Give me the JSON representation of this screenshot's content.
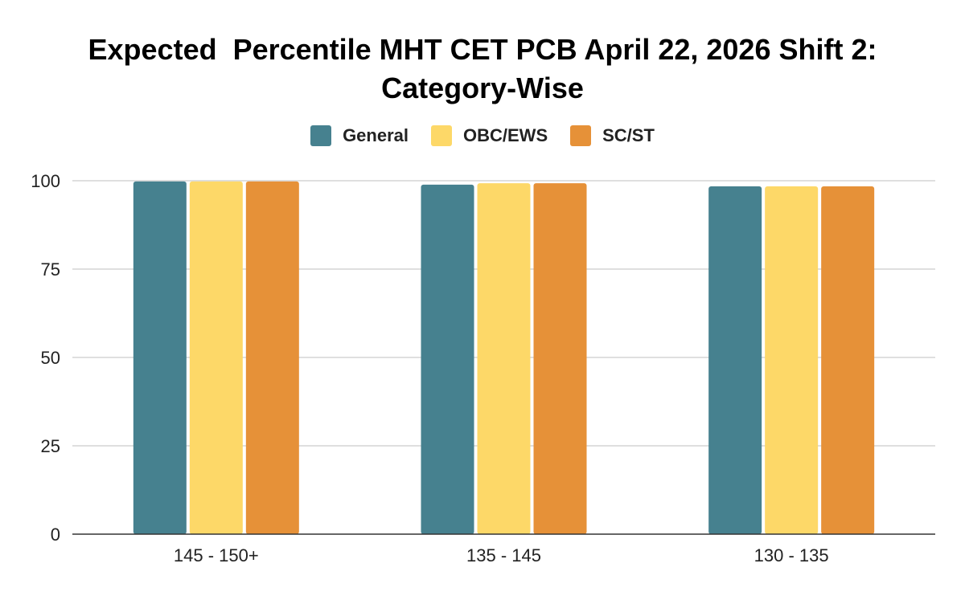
{
  "chart_data": {
    "type": "bar",
    "title_lines": [
      "Expected  Percentile MHT CET PCB April 22, 2026 Shift 2:",
      "Category-Wise"
    ],
    "xlabel": "",
    "ylabel": "",
    "categories": [
      "145 - 150+",
      "135 - 145",
      "130 - 135"
    ],
    "series": [
      {
        "name": "General",
        "color": "#46818f",
        "values": [
          99.8,
          98.9,
          98.4
        ]
      },
      {
        "name": "OBC/EWS",
        "color": "#fdd868",
        "values": [
          99.8,
          99.3,
          98.4
        ]
      },
      {
        "name": "SC/ST",
        "color": "#e69138",
        "values": [
          99.8,
          99.3,
          98.4
        ]
      }
    ],
    "ylim": [
      0,
      100
    ],
    "yticks": [
      0,
      25,
      50,
      75,
      100
    ],
    "grid": true,
    "legend_position": "top-center"
  }
}
